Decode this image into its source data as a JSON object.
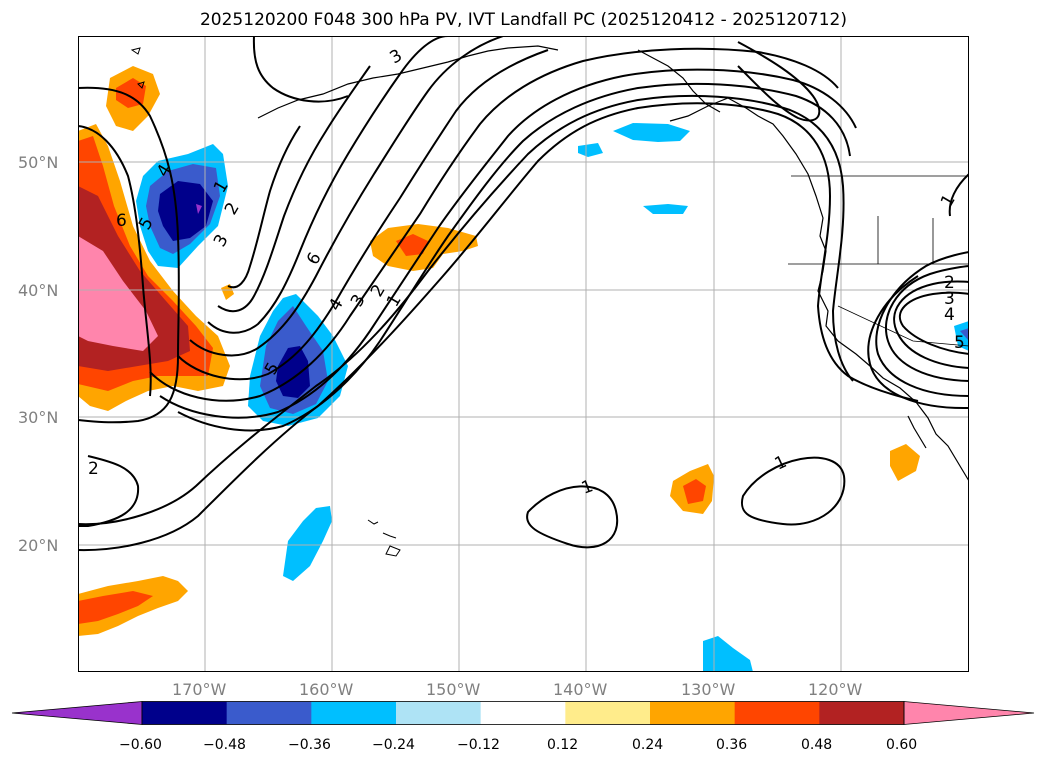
{
  "title": "2025120200 F048 300 hPa PV, IVT Landfall PC (2025120412 - 2025120712)",
  "lat_labels": [
    "50°N",
    "40°N",
    "30°N",
    "20°N"
  ],
  "lon_labels": [
    "170°W",
    "160°W",
    "150°W",
    "140°W",
    "130°W",
    "120°W"
  ],
  "colorbar": {
    "ticks": [
      "−0.60",
      "−0.48",
      "−0.36",
      "−0.24",
      "−0.12",
      "0.12",
      "0.24",
      "0.36",
      "0.48",
      "0.60"
    ],
    "colors": [
      "#9932cc",
      "#00008b",
      "#3a5bcc",
      "#00bfff",
      "#aee3f5",
      "#ffffff",
      "#ffec8b",
      "#ffa500",
      "#ff4500",
      "#b22222",
      "#ff85ac"
    ]
  },
  "contour_labels": [
    "1",
    "2",
    "3",
    "4",
    "5",
    "6",
    "1",
    "2",
    "3",
    "4",
    "5",
    "6",
    "2",
    "1",
    "1",
    "1",
    "2",
    "3",
    "4",
    "5",
    "3"
  ]
}
